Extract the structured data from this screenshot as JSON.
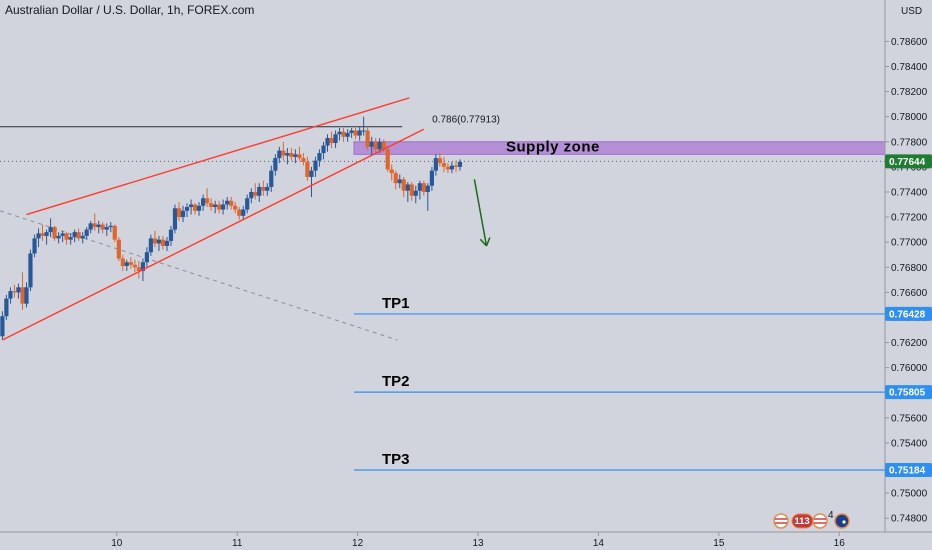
{
  "header": {
    "title": "Australian Dollar / U.S. Dollar, 1h, FOREX.com",
    "currency": "USD"
  },
  "chart_data": {
    "type": "candlestick",
    "title": "Australian Dollar / U.S. Dollar, 1h, FOREX.com",
    "ylabel": "USD",
    "ylim": [
      0.7469,
      0.7893
    ],
    "x_ticks": [
      "10",
      "11",
      "12",
      "13",
      "14",
      "15",
      "16"
    ],
    "y_ticks": [
      "0.78600",
      "0.78400",
      "0.78200",
      "0.78000",
      "0.77800",
      "0.77600",
      "0.77400",
      "0.77200",
      "0.77000",
      "0.76800",
      "0.76600",
      "0.76400",
      "0.76200",
      "0.76000",
      "0.75800",
      "0.75600",
      "0.75400",
      "0.75200",
      "0.75000",
      "0.74800"
    ],
    "x_range": [
      9.03,
      16.38
    ],
    "last_price": 0.77644,
    "last_price_label": "0.77644",
    "grid": false,
    "candles": [
      [
        9.05,
        0.7625,
        0.7645,
        0.7622,
        0.7641
      ],
      [
        9.083,
        0.7641,
        0.7658,
        0.7638,
        0.7655
      ],
      [
        9.117,
        0.7655,
        0.7664,
        0.7651,
        0.7661
      ],
      [
        9.15,
        0.7661,
        0.7666,
        0.7656,
        0.766
      ],
      [
        9.183,
        0.766,
        0.7667,
        0.7655,
        0.7664
      ],
      [
        9.217,
        0.7664,
        0.7676,
        0.7646,
        0.7651
      ],
      [
        9.25,
        0.7651,
        0.7668,
        0.7648,
        0.7664
      ],
      [
        9.283,
        0.7664,
        0.7694,
        0.7661,
        0.7691
      ],
      [
        9.317,
        0.7691,
        0.7706,
        0.7688,
        0.7703
      ],
      [
        9.35,
        0.7703,
        0.7711,
        0.7696,
        0.7707
      ],
      [
        9.383,
        0.7707,
        0.7714,
        0.7701,
        0.7705
      ],
      [
        9.417,
        0.7705,
        0.771,
        0.7698,
        0.7708
      ],
      [
        9.45,
        0.7708,
        0.7719,
        0.7704,
        0.7712
      ],
      [
        9.483,
        0.7712,
        0.7713,
        0.7701,
        0.7703
      ],
      [
        9.517,
        0.7703,
        0.7708,
        0.7699,
        0.7705
      ],
      [
        9.55,
        0.7705,
        0.7709,
        0.77,
        0.7707
      ],
      [
        9.583,
        0.7707,
        0.7708,
        0.7698,
        0.7702
      ],
      [
        9.617,
        0.7702,
        0.7707,
        0.7698,
        0.7704
      ],
      [
        9.65,
        0.7704,
        0.771,
        0.77,
        0.7708
      ],
      [
        9.683,
        0.7708,
        0.7711,
        0.7701,
        0.7703
      ],
      [
        9.717,
        0.7703,
        0.7708,
        0.7699,
        0.7705
      ],
      [
        9.75,
        0.7705,
        0.7712,
        0.7702,
        0.771
      ],
      [
        9.783,
        0.771,
        0.7717,
        0.7707,
        0.7715
      ],
      [
        9.817,
        0.7715,
        0.7723,
        0.7709,
        0.7712
      ],
      [
        9.85,
        0.7712,
        0.7717,
        0.7707,
        0.7714
      ],
      [
        9.883,
        0.7714,
        0.7716,
        0.7707,
        0.771
      ],
      [
        9.917,
        0.771,
        0.7715,
        0.7705,
        0.7712
      ],
      [
        9.95,
        0.7712,
        0.7716,
        0.7708,
        0.7713
      ],
      [
        9.983,
        0.7713,
        0.7714,
        0.77,
        0.7702
      ],
      [
        10.017,
        0.7702,
        0.7704,
        0.7685,
        0.7687
      ],
      [
        10.05,
        0.7687,
        0.769,
        0.7677,
        0.7681
      ],
      [
        10.083,
        0.7681,
        0.7686,
        0.7677,
        0.7684
      ],
      [
        10.117,
        0.7684,
        0.7688,
        0.7679,
        0.7682
      ],
      [
        10.15,
        0.7682,
        0.7686,
        0.7676,
        0.768
      ],
      [
        10.183,
        0.768,
        0.7685,
        0.7671,
        0.7677
      ],
      [
        10.217,
        0.7677,
        0.7687,
        0.7669,
        0.7684
      ],
      [
        10.25,
        0.7684,
        0.7696,
        0.768,
        0.7692
      ],
      [
        10.283,
        0.7692,
        0.7706,
        0.7689,
        0.7703
      ],
      [
        10.317,
        0.7703,
        0.7709,
        0.7696,
        0.7699
      ],
      [
        10.35,
        0.7699,
        0.7705,
        0.7693,
        0.7702
      ],
      [
        10.383,
        0.7702,
        0.7705,
        0.7694,
        0.7697
      ],
      [
        10.417,
        0.7697,
        0.7704,
        0.7693,
        0.7701
      ],
      [
        10.45,
        0.7701,
        0.7713,
        0.7697,
        0.771
      ],
      [
        10.483,
        0.771,
        0.773,
        0.7707,
        0.7727
      ],
      [
        10.517,
        0.7727,
        0.7732,
        0.7717,
        0.772
      ],
      [
        10.55,
        0.772,
        0.7729,
        0.7716,
        0.7725
      ],
      [
        10.583,
        0.7725,
        0.7731,
        0.772,
        0.7728
      ],
      [
        10.617,
        0.7728,
        0.7734,
        0.7722,
        0.773
      ],
      [
        10.65,
        0.773,
        0.7731,
        0.7722,
        0.7725
      ],
      [
        10.683,
        0.7725,
        0.7732,
        0.7721,
        0.7729
      ],
      [
        10.717,
        0.7729,
        0.7738,
        0.7725,
        0.7735
      ],
      [
        10.75,
        0.7735,
        0.7743,
        0.7728,
        0.7731
      ],
      [
        10.783,
        0.7731,
        0.7735,
        0.7725,
        0.7728
      ],
      [
        10.817,
        0.7728,
        0.7733,
        0.7723,
        0.773
      ],
      [
        10.85,
        0.773,
        0.7733,
        0.7723,
        0.7726
      ],
      [
        10.883,
        0.7726,
        0.7734,
        0.7722,
        0.773
      ],
      [
        10.917,
        0.773,
        0.7736,
        0.7726,
        0.7733
      ],
      [
        10.95,
        0.7733,
        0.7736,
        0.7726,
        0.7729
      ],
      [
        10.983,
        0.7729,
        0.7732,
        0.7723,
        0.7726
      ],
      [
        11.017,
        0.7726,
        0.7728,
        0.7718,
        0.7721
      ],
      [
        11.05,
        0.7721,
        0.7729,
        0.7718,
        0.7726
      ],
      [
        11.083,
        0.7726,
        0.7738,
        0.7723,
        0.7735
      ],
      [
        11.117,
        0.7735,
        0.7743,
        0.7731,
        0.774
      ],
      [
        11.15,
        0.774,
        0.7747,
        0.7734,
        0.7737
      ],
      [
        11.183,
        0.7737,
        0.7747,
        0.7732,
        0.7744
      ],
      [
        11.217,
        0.7744,
        0.7749,
        0.7737,
        0.7741
      ],
      [
        11.25,
        0.7741,
        0.7747,
        0.7737,
        0.7744
      ],
      [
        11.283,
        0.7744,
        0.7761,
        0.774,
        0.7757
      ],
      [
        11.317,
        0.7757,
        0.777,
        0.7753,
        0.7767
      ],
      [
        11.35,
        0.7767,
        0.7776,
        0.7763,
        0.7773
      ],
      [
        11.383,
        0.7773,
        0.778,
        0.7765,
        0.7769
      ],
      [
        11.417,
        0.7769,
        0.7775,
        0.7762,
        0.7771
      ],
      [
        11.45,
        0.7771,
        0.7775,
        0.7765,
        0.7768
      ],
      [
        11.483,
        0.7768,
        0.7774,
        0.7763,
        0.777
      ],
      [
        11.517,
        0.777,
        0.7776,
        0.7765,
        0.7767
      ],
      [
        11.55,
        0.7767,
        0.7771,
        0.7761,
        0.7764
      ],
      [
        11.583,
        0.7764,
        0.7768,
        0.7749,
        0.7752
      ],
      [
        11.617,
        0.7752,
        0.776,
        0.7736,
        0.7757
      ],
      [
        11.65,
        0.7757,
        0.7768,
        0.7752,
        0.7765
      ],
      [
        11.683,
        0.7765,
        0.7774,
        0.776,
        0.7771
      ],
      [
        11.717,
        0.7771,
        0.778,
        0.7766,
        0.7777
      ],
      [
        11.75,
        0.7777,
        0.7786,
        0.7772,
        0.7783
      ],
      [
        11.783,
        0.7783,
        0.7788,
        0.7775,
        0.7779
      ],
      [
        11.817,
        0.7779,
        0.7789,
        0.7775,
        0.7786
      ],
      [
        11.85,
        0.7786,
        0.7791,
        0.7781,
        0.7788
      ],
      [
        11.883,
        0.7788,
        0.7791,
        0.778,
        0.7784
      ],
      [
        11.917,
        0.7784,
        0.779,
        0.778,
        0.7787
      ],
      [
        11.95,
        0.7787,
        0.7791,
        0.7783,
        0.7789
      ],
      [
        11.983,
        0.7789,
        0.7791,
        0.7782,
        0.7785
      ],
      [
        12.017,
        0.7785,
        0.7792,
        0.7781,
        0.7789
      ],
      [
        12.05,
        0.7789,
        0.78,
        0.7785,
        0.7789
      ],
      [
        12.083,
        0.7789,
        0.7792,
        0.7773,
        0.7776
      ],
      [
        12.117,
        0.7776,
        0.7784,
        0.7769,
        0.778
      ],
      [
        12.15,
        0.778,
        0.7783,
        0.7771,
        0.7774
      ],
      [
        12.183,
        0.7774,
        0.7783,
        0.7771,
        0.778
      ],
      [
        12.217,
        0.778,
        0.7782,
        0.7772,
        0.7774
      ],
      [
        12.25,
        0.7774,
        0.7777,
        0.7756,
        0.7758
      ],
      [
        12.283,
        0.7758,
        0.7762,
        0.7749,
        0.7755
      ],
      [
        12.317,
        0.7755,
        0.7757,
        0.7742,
        0.7747
      ],
      [
        12.35,
        0.7747,
        0.7754,
        0.7743,
        0.775
      ],
      [
        12.383,
        0.775,
        0.7752,
        0.7736,
        0.7741
      ],
      [
        12.417,
        0.7741,
        0.7748,
        0.7732,
        0.7746
      ],
      [
        12.45,
        0.7746,
        0.7748,
        0.7733,
        0.7737
      ],
      [
        12.483,
        0.7737,
        0.7745,
        0.7731,
        0.7741
      ],
      [
        12.517,
        0.7741,
        0.7749,
        0.7734,
        0.7747
      ],
      [
        12.55,
        0.7747,
        0.7749,
        0.7737,
        0.774
      ],
      [
        12.583,
        0.774,
        0.7747,
        0.7725,
        0.7745
      ],
      [
        12.617,
        0.7745,
        0.776,
        0.7741,
        0.7757
      ],
      [
        12.65,
        0.7757,
        0.777,
        0.7753,
        0.7767
      ],
      [
        12.683,
        0.7767,
        0.7771,
        0.776,
        0.7763
      ],
      [
        12.717,
        0.7763,
        0.7768,
        0.7756,
        0.776
      ],
      [
        12.75,
        0.776,
        0.7763,
        0.7755,
        0.7758
      ],
      [
        12.783,
        0.7758,
        0.7764,
        0.7755,
        0.7761
      ],
      [
        12.817,
        0.7761,
        0.7765,
        0.7756,
        0.776
      ],
      [
        12.85,
        0.776,
        0.7766,
        0.7757,
        0.7764
      ]
    ],
    "annotations": {
      "fib_label": "0.786(0.77913)",
      "fib_value": 0.7792,
      "fib_x_start": 9.03,
      "fib_x_end": 12.37,
      "supply_zone": {
        "label": "Supply zone",
        "top": 0.778,
        "bottom": 0.777,
        "x_start": 11.97
      },
      "wedge_upper": [
        [
          9.25,
          0.7722
        ],
        [
          12.43,
          0.7815
        ]
      ],
      "wedge_lower": [
        [
          9.05,
          0.7622
        ],
        [
          12.55,
          0.779
        ]
      ],
      "dashed_trend": [
        [
          9.03,
          0.7725
        ],
        [
          12.33,
          0.7622
        ]
      ],
      "arrow": [
        [
          12.97,
          0.775
        ],
        [
          13.07,
          0.7697
        ]
      ],
      "targets": [
        {
          "label": "TP1",
          "value": 0.76428,
          "value_label": "0.76428",
          "x_start": 11.97
        },
        {
          "label": "TP2",
          "value": 0.75805,
          "value_label": "0.75805",
          "x_start": 11.97
        },
        {
          "label": "TP3",
          "value": 0.75184,
          "value_label": "0.75184",
          "x_start": 11.97
        }
      ]
    }
  },
  "footer": {
    "events": [
      "113",
      "4"
    ]
  },
  "colors": {
    "background": "#d1d4dc",
    "bull": "#26589c",
    "bear": "#e0662c",
    "wedge": "#ff3b30",
    "supply_zone": "#b084d6",
    "target_line": "#2f8ff0",
    "arrow": "#1c6b1c",
    "last_price_bg": "#1e7d32"
  }
}
